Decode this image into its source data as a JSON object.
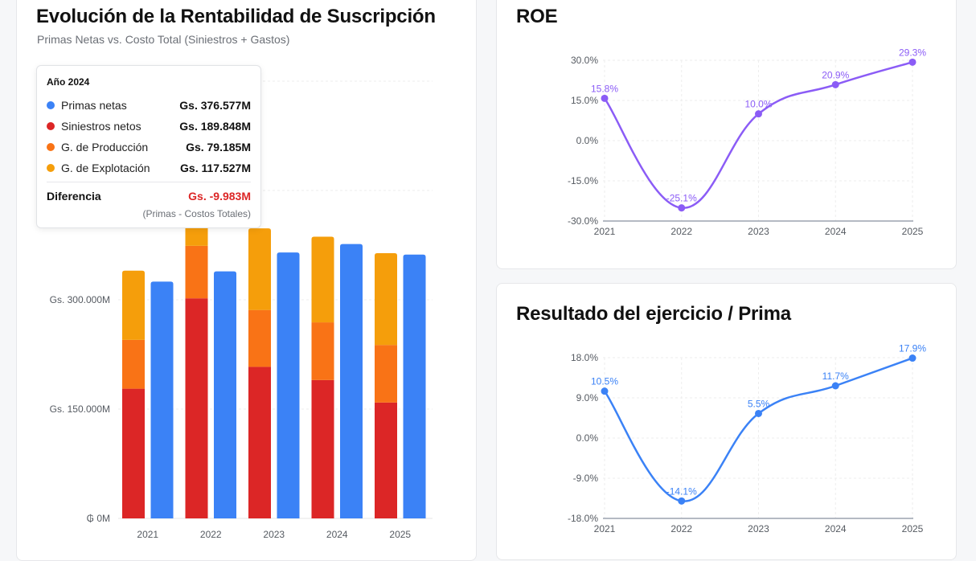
{
  "colors": {
    "primas": "#3b82f6",
    "siniestros": "#dc2626",
    "produccion": "#f97316",
    "explotacion": "#f59e0b",
    "roe": "#8b5cf6",
    "resultado": "#3b82f6",
    "negative": "#dc2626"
  },
  "main": {
    "title": "Evolución de la Rentabilidad de Suscripción",
    "subtitle": "Primas Netas vs. Costo Total (Siniestros + Gastos)"
  },
  "tooltip": {
    "title": "Año 2024",
    "rows": [
      {
        "name": "Primas netas",
        "value": "Gs. 376.577M"
      },
      {
        "name": "Siniestros netos",
        "value": "Gs. 189.848M"
      },
      {
        "name": "G. de Producción",
        "value": "Gs. 79.185M"
      },
      {
        "name": "G. de Explotación",
        "value": "Gs. 117.527M"
      }
    ],
    "diff_label": "Diferencia",
    "diff_value": "Gs. -9.983M",
    "note": "(Primas - Costos Totales)"
  },
  "roe": {
    "title": "ROE"
  },
  "resultado": {
    "title": "Resultado del ejercicio / Prima"
  },
  "chart_data": [
    {
      "type": "bar",
      "title": "Evolución de la Rentabilidad de Suscripción",
      "subtitle": "Primas Netas vs. Costo Total (Siniestros + Gastos)",
      "categories": [
        "2021",
        "2022",
        "2023",
        "2024",
        "2025"
      ],
      "ylim": [
        0,
        600000
      ],
      "yticks": [
        0,
        150000,
        300000
      ],
      "ytick_labels": [
        "₲ 0M",
        "Gs. 150.000M",
        "Gs. 300.000M"
      ],
      "stacked_series": [
        {
          "name": "Siniestros netos",
          "values": [
            178000,
            302000,
            208000,
            189848,
            159000
          ]
        },
        {
          "name": "G. de Producción",
          "values": [
            67000,
            72000,
            78000,
            79185,
            79000
          ]
        },
        {
          "name": "G. de Explotación",
          "values": [
            95000,
            135000,
            112000,
            117527,
            126000
          ]
        }
      ],
      "series": [
        {
          "name": "Primas netas",
          "values": [
            325000,
            339000,
            365000,
            376577,
            362000
          ]
        }
      ],
      "grid": true
    },
    {
      "type": "line",
      "title": "ROE",
      "x": [
        "2021",
        "2022",
        "2023",
        "2024",
        "2025"
      ],
      "values": [
        15.8,
        -25.1,
        10.0,
        20.9,
        29.3
      ],
      "labels": [
        "15.8%",
        "-25.1%",
        "10.0%",
        "20.9%",
        "29.3%"
      ],
      "ylim": [
        -30,
        30
      ],
      "yticks": [
        -30,
        -15,
        0,
        15,
        30
      ],
      "ytick_labels": [
        "-30.0%",
        "-15.0%",
        "0.0%",
        "15.0%",
        "30.0%"
      ],
      "grid": true
    },
    {
      "type": "line",
      "title": "Resultado del ejercicio / Prima",
      "x": [
        "2021",
        "2022",
        "2023",
        "2024",
        "2025"
      ],
      "values": [
        10.5,
        -14.1,
        5.5,
        11.7,
        17.9
      ],
      "labels": [
        "10.5%",
        "-14.1%",
        "5.5%",
        "11.7%",
        "17.9%"
      ],
      "ylim": [
        -18,
        18
      ],
      "yticks": [
        -18,
        -9,
        0,
        9,
        18
      ],
      "ytick_labels": [
        "-18.0%",
        "-9.0%",
        "0.0%",
        "9.0%",
        "18.0%"
      ],
      "grid": true
    }
  ]
}
